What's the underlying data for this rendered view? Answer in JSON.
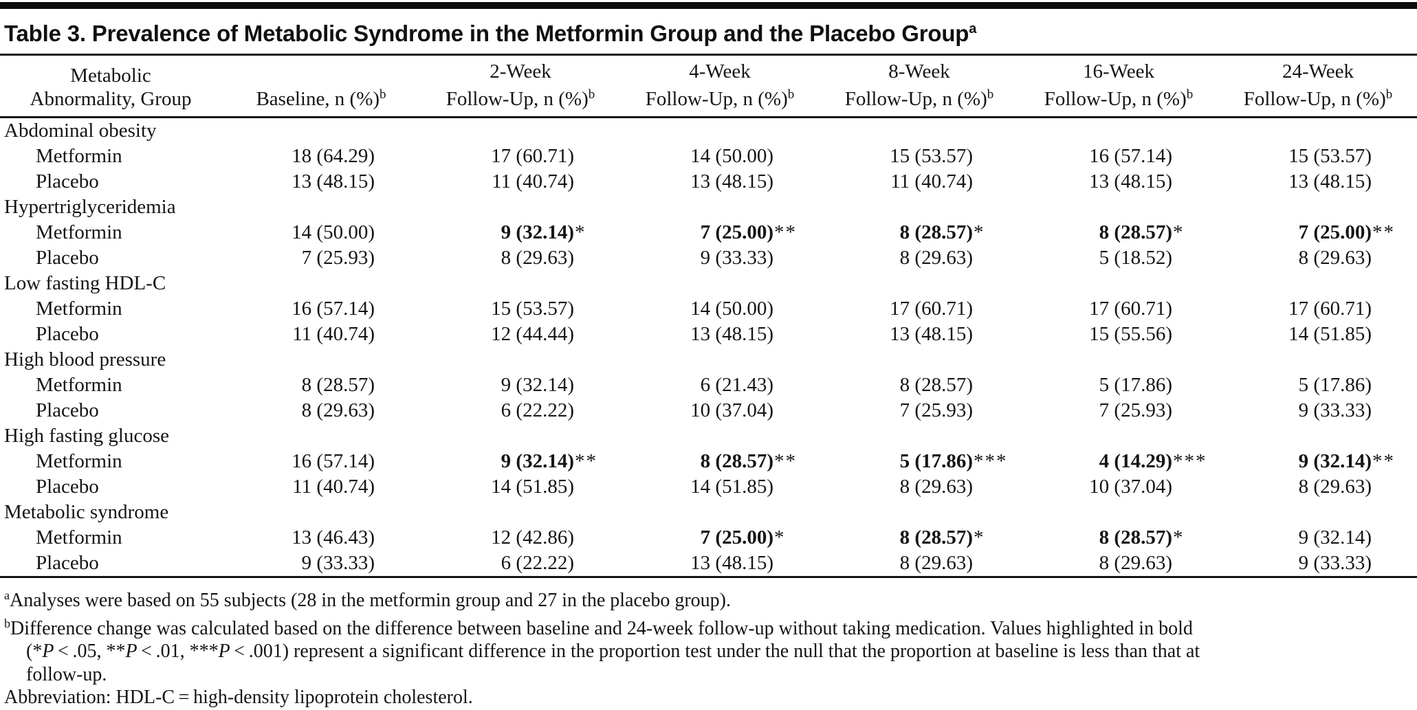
{
  "table": {
    "title": {
      "text": "Table 3. Prevalence of Metabolic Syndrome in the Metformin Group and the Placebo Group",
      "sup": "a"
    },
    "header": {
      "col1": {
        "line1": "Metabolic",
        "line2": "Abnormality, Group"
      },
      "data_cols": [
        {
          "line1": "",
          "line2": "Baseline, n (%)",
          "sup": "b"
        },
        {
          "line1": "2-Week",
          "line2": "Follow-Up, n (%)",
          "sup": "b"
        },
        {
          "line1": "4-Week",
          "line2": "Follow-Up, n (%)",
          "sup": "b"
        },
        {
          "line1": "8-Week",
          "line2": "Follow-Up, n (%)",
          "sup": "b"
        },
        {
          "line1": "16-Week",
          "line2": "Follow-Up, n (%)",
          "sup": "b"
        },
        {
          "line1": "24-Week",
          "line2": "Follow-Up, n (%)",
          "sup": "b"
        }
      ]
    },
    "sections": [
      {
        "name": "Abdominal obesity",
        "rows": [
          {
            "group": "Metformin",
            "values": [
              {
                "value": "18 (64.29)",
                "stars": "",
                "bold": false
              },
              {
                "value": "17 (60.71)",
                "stars": "",
                "bold": false
              },
              {
                "value": "14 (50.00)",
                "stars": "",
                "bold": false
              },
              {
                "value": "15 (53.57)",
                "stars": "",
                "bold": false
              },
              {
                "value": "16 (57.14)",
                "stars": "",
                "bold": false
              },
              {
                "value": "15 (53.57)",
                "stars": "",
                "bold": false
              }
            ]
          },
          {
            "group": "Placebo",
            "values": [
              {
                "value": "13 (48.15)",
                "stars": "",
                "bold": false
              },
              {
                "value": "11 (40.74)",
                "stars": "",
                "bold": false
              },
              {
                "value": "13 (48.15)",
                "stars": "",
                "bold": false
              },
              {
                "value": "11 (40.74)",
                "stars": "",
                "bold": false
              },
              {
                "value": "13 (48.15)",
                "stars": "",
                "bold": false
              },
              {
                "value": "13 (48.15)",
                "stars": "",
                "bold": false
              }
            ]
          }
        ]
      },
      {
        "name": "Hypertriglyceridemia",
        "rows": [
          {
            "group": "Metformin",
            "values": [
              {
                "value": "14 (50.00)",
                "stars": "",
                "bold": false
              },
              {
                "value": "9 (32.14)",
                "stars": "*",
                "bold": true
              },
              {
                "value": "7 (25.00)",
                "stars": "**",
                "bold": true
              },
              {
                "value": "8 (28.57)",
                "stars": "*",
                "bold": true
              },
              {
                "value": "8 (28.57)",
                "stars": "*",
                "bold": true
              },
              {
                "value": "7 (25.00)",
                "stars": "**",
                "bold": true
              }
            ]
          },
          {
            "group": "Placebo",
            "values": [
              {
                "value": "7 (25.93)",
                "stars": "",
                "bold": false
              },
              {
                "value": "8 (29.63)",
                "stars": "",
                "bold": false
              },
              {
                "value": "9 (33.33)",
                "stars": "",
                "bold": false
              },
              {
                "value": "8 (29.63)",
                "stars": "",
                "bold": false
              },
              {
                "value": "5 (18.52)",
                "stars": "",
                "bold": false
              },
              {
                "value": "8 (29.63)",
                "stars": "",
                "bold": false
              }
            ]
          }
        ]
      },
      {
        "name": "Low fasting HDL-C",
        "rows": [
          {
            "group": "Metformin",
            "values": [
              {
                "value": "16 (57.14)",
                "stars": "",
                "bold": false
              },
              {
                "value": "15 (53.57)",
                "stars": "",
                "bold": false
              },
              {
                "value": "14 (50.00)",
                "stars": "",
                "bold": false
              },
              {
                "value": "17 (60.71)",
                "stars": "",
                "bold": false
              },
              {
                "value": "17 (60.71)",
                "stars": "",
                "bold": false
              },
              {
                "value": "17 (60.71)",
                "stars": "",
                "bold": false
              }
            ]
          },
          {
            "group": "Placebo",
            "values": [
              {
                "value": "11 (40.74)",
                "stars": "",
                "bold": false
              },
              {
                "value": "12 (44.44)",
                "stars": "",
                "bold": false
              },
              {
                "value": "13 (48.15)",
                "stars": "",
                "bold": false
              },
              {
                "value": "13 (48.15)",
                "stars": "",
                "bold": false
              },
              {
                "value": "15 (55.56)",
                "stars": "",
                "bold": false
              },
              {
                "value": "14 (51.85)",
                "stars": "",
                "bold": false
              }
            ]
          }
        ]
      },
      {
        "name": "High blood pressure",
        "rows": [
          {
            "group": "Metformin",
            "values": [
              {
                "value": "8 (28.57)",
                "stars": "",
                "bold": false
              },
              {
                "value": "9 (32.14)",
                "stars": "",
                "bold": false
              },
              {
                "value": "6 (21.43)",
                "stars": "",
                "bold": false
              },
              {
                "value": "8 (28.57)",
                "stars": "",
                "bold": false
              },
              {
                "value": "5 (17.86)",
                "stars": "",
                "bold": false
              },
              {
                "value": "5 (17.86)",
                "stars": "",
                "bold": false
              }
            ]
          },
          {
            "group": "Placebo",
            "values": [
              {
                "value": "8 (29.63)",
                "stars": "",
                "bold": false
              },
              {
                "value": "6 (22.22)",
                "stars": "",
                "bold": false
              },
              {
                "value": "10 (37.04)",
                "stars": "",
                "bold": false
              },
              {
                "value": "7 (25.93)",
                "stars": "",
                "bold": false
              },
              {
                "value": "7 (25.93)",
                "stars": "",
                "bold": false
              },
              {
                "value": "9 (33.33)",
                "stars": "",
                "bold": false
              }
            ]
          }
        ]
      },
      {
        "name": "High fasting glucose",
        "rows": [
          {
            "group": "Metformin",
            "values": [
              {
                "value": "16 (57.14)",
                "stars": "",
                "bold": false
              },
              {
                "value": "9 (32.14)",
                "stars": "**",
                "bold": true
              },
              {
                "value": "8 (28.57)",
                "stars": "**",
                "bold": true
              },
              {
                "value": "5 (17.86)",
                "stars": "***",
                "bold": true
              },
              {
                "value": "4 (14.29)",
                "stars": "***",
                "bold": true
              },
              {
                "value": "9 (32.14)",
                "stars": "**",
                "bold": true
              }
            ]
          },
          {
            "group": "Placebo",
            "values": [
              {
                "value": "11 (40.74)",
                "stars": "",
                "bold": false
              },
              {
                "value": "14 (51.85)",
                "stars": "",
                "bold": false
              },
              {
                "value": "14 (51.85)",
                "stars": "",
                "bold": false
              },
              {
                "value": "8 (29.63)",
                "stars": "",
                "bold": false
              },
              {
                "value": "10 (37.04)",
                "stars": "",
                "bold": false
              },
              {
                "value": "8 (29.63)",
                "stars": "",
                "bold": false
              }
            ]
          }
        ]
      },
      {
        "name": "Metabolic syndrome",
        "rows": [
          {
            "group": "Metformin",
            "values": [
              {
                "value": "13 (46.43)",
                "stars": "",
                "bold": false
              },
              {
                "value": "12 (42.86)",
                "stars": "",
                "bold": false
              },
              {
                "value": "7 (25.00)",
                "stars": "*",
                "bold": true
              },
              {
                "value": "8 (28.57)",
                "stars": "*",
                "bold": true
              },
              {
                "value": "8 (28.57)",
                "stars": "*",
                "bold": true
              },
              {
                "value": "9 (32.14)",
                "stars": "",
                "bold": false
              }
            ]
          },
          {
            "group": "Placebo",
            "values": [
              {
                "value": "9 (33.33)",
                "stars": "",
                "bold": false
              },
              {
                "value": "6 (22.22)",
                "stars": "",
                "bold": false
              },
              {
                "value": "13 (48.15)",
                "stars": "",
                "bold": false
              },
              {
                "value": "8 (29.63)",
                "stars": "",
                "bold": false
              },
              {
                "value": "8 (29.63)",
                "stars": "",
                "bold": false
              },
              {
                "value": "9 (33.33)",
                "stars": "",
                "bold": false
              }
            ]
          }
        ]
      }
    ],
    "footnotes": {
      "a": {
        "marker": "a",
        "text": "Analyses were based on 55 subjects (28 in the metformin group and 27 in the placebo group)."
      },
      "b": {
        "marker": "b",
        "lines": [
          "Difference change was calculated based on the difference between baseline and 24-week follow-up without taking medication. Values highlighted in bold",
          "(*P < .05, **P < .01, ***P < .001) represent a significant difference in the proportion test under the null that the proportion at baseline is less than that at",
          "follow-up."
        ]
      },
      "abbreviation": "Abbreviation: HDL-C = high-density lipoprotein cholesterol."
    }
  }
}
